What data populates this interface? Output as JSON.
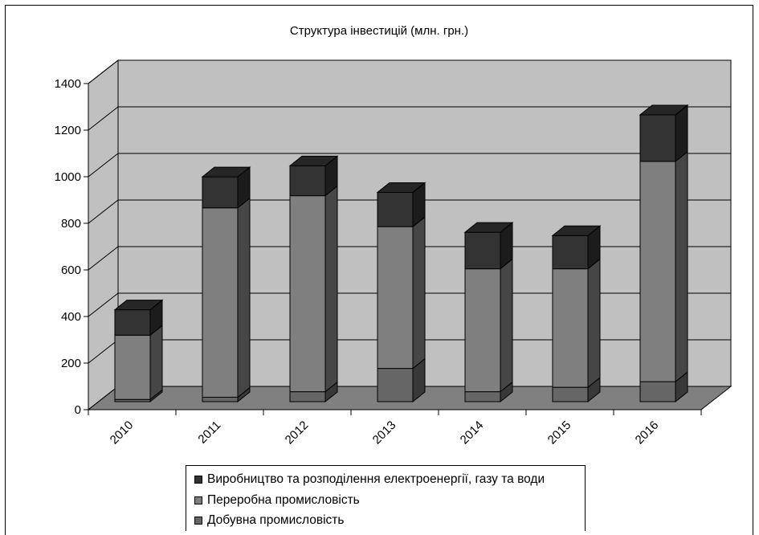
{
  "chart_data": {
    "type": "bar",
    "stacked": true,
    "three_d": true,
    "title": "Структура інвестицій (млн. грн.)",
    "categories": [
      "2010",
      "2011",
      "2012",
      "2013",
      "2014",
      "2015",
      "2016"
    ],
    "series": [
      {
        "name": "Добувна промисловість",
        "values": [
          10,
          20,
          45,
          150,
          45,
          65,
          90
        ]
      },
      {
        "name": "Переробна промисловість",
        "values": [
          290,
          855,
          885,
          640,
          555,
          535,
          995
        ]
      },
      {
        "name": "Виробництво та розподілення електроенергії, газу та води",
        "values": [
          115,
          140,
          135,
          155,
          165,
          150,
          210
        ]
      }
    ],
    "ylim": [
      0,
      1400
    ],
    "yticks": [
      0,
      200,
      400,
      600,
      800,
      1000,
      1200,
      1400
    ],
    "grid": true,
    "legend_position": "bottom",
    "colors": {
      "Добувна промисловість": "#666666",
      "Переробна промисловість": "#7f7f7f",
      "Виробництво та розподілення електроенергії, газу та води": "#333333",
      "plot_background": "#c0c0c0",
      "floor": "#808080"
    }
  }
}
